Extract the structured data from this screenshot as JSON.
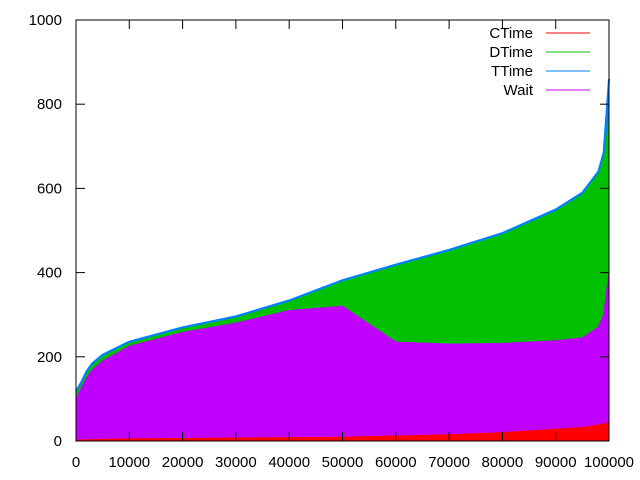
{
  "chart_data": {
    "type": "area",
    "title": "",
    "xlabel": "",
    "ylabel": "",
    "xlim": [
      0,
      100000
    ],
    "ylim": [
      0,
      1000
    ],
    "xticks": [
      0,
      10000,
      20000,
      30000,
      40000,
      50000,
      60000,
      70000,
      80000,
      90000,
      100000
    ],
    "yticks": [
      0,
      200,
      400,
      600,
      800,
      1000
    ],
    "xtick_labels": [
      "0",
      "10000",
      "20000",
      "30000",
      "40000",
      "50000",
      "60000",
      "70000",
      "80000",
      "90000",
      "100000"
    ],
    "ytick_labels": [
      "0",
      "200",
      "400",
      "600",
      "800",
      "1000"
    ],
    "grid": false,
    "legend_position": "top-right",
    "x": [
      0,
      1000,
      2000,
      3000,
      5000,
      10000,
      20000,
      30000,
      40000,
      50000,
      60000,
      70000,
      80000,
      90000,
      95000,
      98000,
      99000,
      100000
    ],
    "series": [
      {
        "name": "CTime",
        "color": "#ff0000",
        "values": [
          2,
          2,
          3,
          3,
          4,
          5,
          6,
          7,
          8,
          9,
          12,
          15,
          20,
          28,
          32,
          38,
          40,
          45
        ]
      },
      {
        "name": "DTime",
        "color": "#00c000",
        "values": [
          112,
          135,
          160,
          178,
          200,
          232,
          266,
          292,
          330,
          378,
          415,
          450,
          490,
          545,
          585,
          635,
          680,
          760
        ]
      },
      {
        "name": "TTime",
        "color": "#0080ff",
        "values": [
          118,
          140,
          166,
          184,
          205,
          236,
          270,
          296,
          334,
          382,
          419,
          454,
          494,
          550,
          590,
          640,
          685,
          860
        ]
      },
      {
        "name": "Wait",
        "color": "#c000ff",
        "values": [
          100,
          125,
          150,
          168,
          190,
          225,
          258,
          280,
          310,
          320,
          235,
          230,
          232,
          238,
          245,
          270,
          300,
          400
        ]
      }
    ]
  }
}
